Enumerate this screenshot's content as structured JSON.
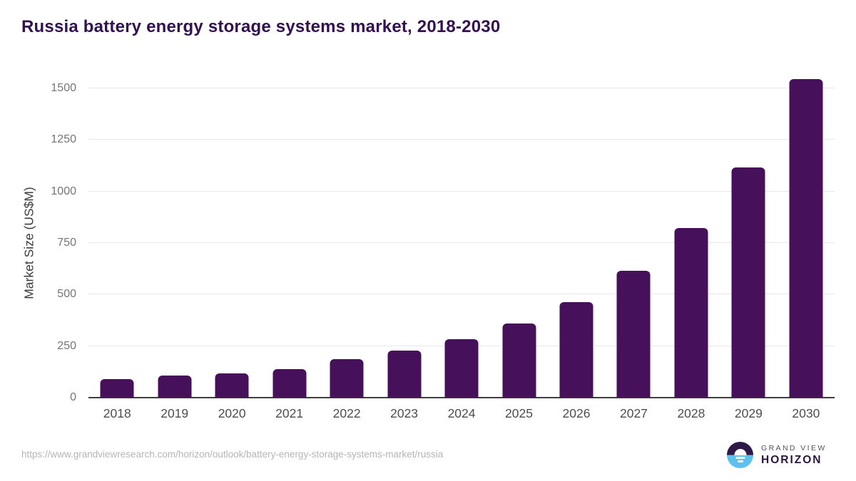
{
  "title": "Russia battery energy storage systems market, 2018-2030",
  "chart_data": {
    "type": "bar",
    "categories": [
      "2018",
      "2019",
      "2020",
      "2021",
      "2022",
      "2023",
      "2024",
      "2025",
      "2026",
      "2027",
      "2028",
      "2029",
      "2030"
    ],
    "values": [
      89,
      107,
      117,
      138,
      186,
      227,
      285,
      361,
      464,
      614,
      821,
      1116,
      1546
    ],
    "title": "Russia battery energy storage systems market, 2018-2030",
    "xlabel": "",
    "ylabel": "Market Size (US$M)",
    "ylim": [
      0,
      1500
    ],
    "yticks": [
      0,
      250,
      500,
      750,
      1000,
      1250,
      1500
    ],
    "grid": true,
    "legend": "none",
    "bar_color": "#47105A"
  },
  "footer": {
    "source_url": "https://www.grandviewresearch.com/horizon/outlook/battery-energy-storage-systems-market/russia",
    "logo": {
      "line1": "GRAND VIEW",
      "line2": "HORIZON"
    }
  },
  "colors": {
    "bar": "#47105A",
    "title_text": "#331150",
    "gridline": "#e8e8e8",
    "axis_line": "#3f3f3f",
    "y_tick_text": "#757575",
    "x_label_text": "#4d4d4d",
    "logo_dark": "#2e1a47",
    "logo_blue": "#5ec1ed"
  }
}
